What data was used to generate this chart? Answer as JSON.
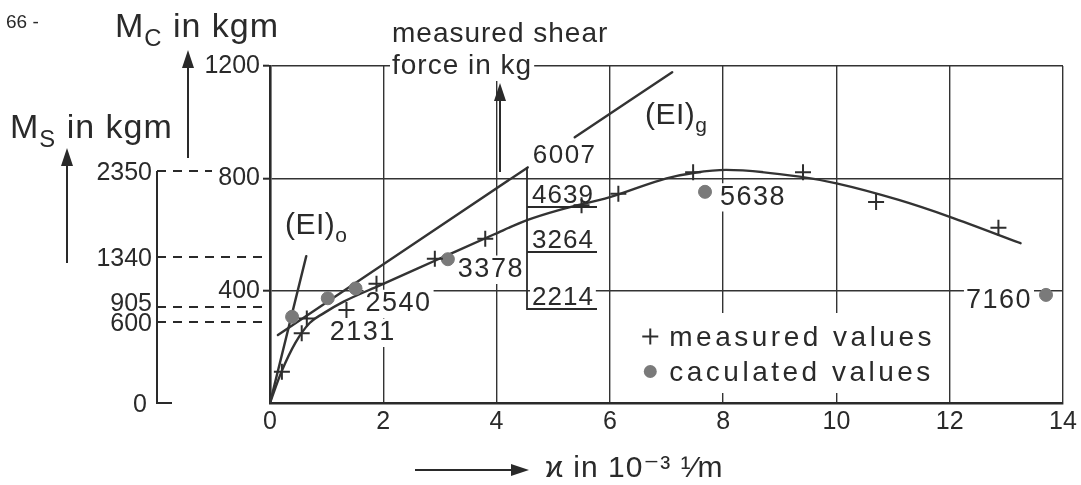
{
  "chart_data": {
    "type": "line",
    "xlabel": "ϰ in 10⁻³ ¹⁄m",
    "ylabel": "M$_{C}$ in kgm",
    "annotations": [
      "66 -",
      "M$_{S}$ in kgm",
      "2350",
      "1340",
      "905",
      "600",
      "0",
      "measured shear force in kg",
      {
        "text": "6007",
        "x": 4.55,
        "y": 839
      },
      "4639",
      "3264",
      "2214",
      {
        "text": "2131",
        "x": 1.02,
        "y": 373
      },
      {
        "text": "2540",
        "x": 1.51,
        "y": 408
      },
      {
        "text": "3378",
        "x": 3.14,
        "y": 512
      },
      {
        "text": "5638",
        "x": 7.68,
        "y": 752
      },
      {
        "text": "7160",
        "x": 13.7,
        "y": 385
      }
    ],
    "xlim": [
      0,
      14
    ],
    "xticks": [
      0,
      2,
      4,
      6,
      8,
      10,
      12,
      14
    ],
    "ylim": [
      0,
      1200
    ],
    "yticks": [
      400,
      800,
      1200
    ],
    "grid": true,
    "legend": "bottom right",
    "series": [
      {
        "name": "measured values",
        "type": "scatter",
        "marker": "cross",
        "color": "#2e2e2e",
        "x": [
          0.21,
          0.56,
          0.65,
          1.35,
          1.88,
          2.91,
          3.8,
          5.5,
          6.15,
          7.47,
          9.41,
          10.7,
          12.86
        ],
        "values": [
          111,
          248,
          301,
          331,
          425,
          514,
          585,
          704,
          745,
          822,
          822,
          716,
          624
        ]
      },
      {
        "name": "caculated values",
        "type": "scatter",
        "marker": "circle",
        "color": "#7a7a7a",
        "x": [
          0.39,
          1.02,
          1.51,
          3.14,
          7.68,
          13.7
        ],
        "values": [
          307,
          373,
          408,
          512,
          752,
          385
        ]
      },
      {
        "color": "#333333",
        "x": [
          0,
          0.2,
          0.45,
          0.7,
          0.95,
          1.3,
          1.95,
          2.95,
          3.95,
          4.55,
          5.1,
          6,
          7,
          7.5,
          8.05,
          9.35,
          10,
          11.1,
          12,
          13.25
        ],
        "values": [
          0,
          110,
          215,
          285,
          320,
          361,
          420,
          510,
          600,
          652,
          687,
          733,
          800,
          820,
          830,
          806,
          782,
          723,
          663,
          569
        ]
      },
      {
        "name": "(EI)$_{o}$",
        "color": "#333333",
        "x": [
          0,
          0.64
        ],
        "values": [
          0,
          523
        ]
      },
      {
        "name": "(EI)$_{g}$",
        "color": "#333333",
        "x": [
          0.14,
          4.55,
          4.9,
          5.38,
          7.1
        ],
        "values": [
          242,
          839,
          null,
          946,
          1178
        ]
      }
    ]
  }
}
